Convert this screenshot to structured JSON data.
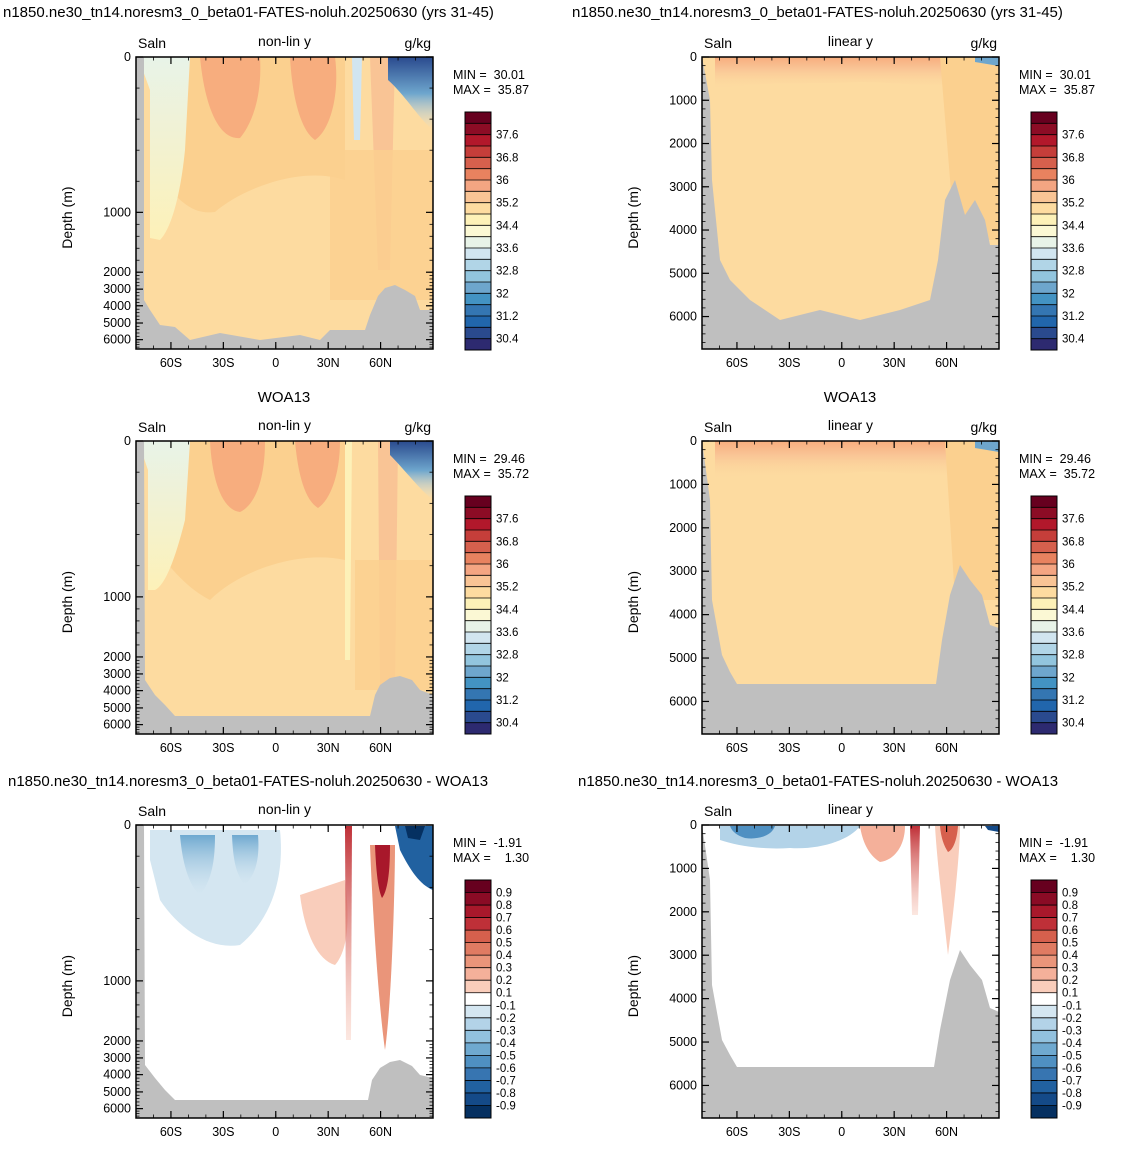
{
  "rows": [
    {
      "title_left": "n1850.ne30_tn14.noresm3_0_beta01-FATES-noluh.20250630 (yrs 31-45)",
      "title_right": "n1850.ne30_tn14.noresm3_0_beta01-FATES-noluh.20250630 (yrs 31-45)"
    },
    {
      "title_left": "WOA13",
      "title_right": "WOA13"
    },
    {
      "title_left": "n1850.ne30_tn14.noresm3_0_beta01-FATES-noluh.20250630 - WOA13",
      "title_right": "n1850.ne30_tn14.noresm3_0_beta01-FATES-noluh.20250630 - WOA13"
    }
  ],
  "colorbars": {
    "salinity": {
      "labels": [
        "37.6",
        "36.8",
        "36",
        "35.2",
        "34.4",
        "33.6",
        "32.8",
        "32",
        "31.2",
        "30.4"
      ],
      "colors": [
        "#67001f",
        "#8c0c25",
        "#b2182b",
        "#c53e3a",
        "#d6604d",
        "#e8825f",
        "#f4a582",
        "#f9c495",
        "#fddba0",
        "#fdf1b8",
        "#fbf8d4",
        "#e8f3e8",
        "#d1e5f0",
        "#b1d5e7",
        "#92c5de",
        "#6ea6cd",
        "#4393c3",
        "#3476b2",
        "#2166ac",
        "#2a4a8e",
        "#2d2a70"
      ]
    },
    "difference": {
      "labels": [
        "0.9",
        "0.8",
        "0.7",
        "0.6",
        "0.5",
        "0.4",
        "0.3",
        "0.2",
        "0.1",
        "-0.1",
        "-0.2",
        "-0.3",
        "-0.4",
        "-0.5",
        "-0.6",
        "-0.7",
        "-0.8",
        "-0.9"
      ],
      "colors": [
        "#67001f",
        "#8a0b25",
        "#a8182b",
        "#bf3038",
        "#d6604d",
        "#e07b62",
        "#ea957a",
        "#f4b09a",
        "#f9cdbb",
        "#ffffff",
        "#d4e6f1",
        "#b3d3e8",
        "#92c1de",
        "#6fa9d0",
        "#4f90c2",
        "#3775b1",
        "#2161a0",
        "#144a88",
        "#053061"
      ]
    }
  },
  "panels": [
    {
      "id": "p1",
      "var": "Saln",
      "mode": "non-lin y",
      "units": "g/kg",
      "min_text": "MIN =  30.01",
      "max_text": "MAX =  35.87"
    },
    {
      "id": "p2",
      "var": "Saln",
      "mode": "linear y",
      "units": "g/kg",
      "min_text": "MIN =  30.01",
      "max_text": "MAX =  35.87"
    },
    {
      "id": "p3",
      "var": "Saln",
      "mode": "non-lin y",
      "units": "g/kg",
      "min_text": "MIN =  29.46",
      "max_text": "MAX =  35.72"
    },
    {
      "id": "p4",
      "var": "Saln",
      "mode": "linear y",
      "units": "g/kg",
      "min_text": "MIN =  29.46",
      "max_text": "MAX =  35.72"
    },
    {
      "id": "p5",
      "var": "Saln",
      "mode": "non-lin y",
      "units": "",
      "min_text": "MIN =  -1.91",
      "max_text": "MAX =    1.30"
    },
    {
      "id": "p6",
      "var": "Saln",
      "mode": "linear y",
      "units": "",
      "min_text": "MIN =  -1.91",
      "max_text": "MAX =    1.30"
    }
  ],
  "chart_data": {
    "type": "heatmap",
    "x_label_ticks": [
      "60S",
      "30S",
      "0",
      "30N",
      "60N"
    ],
    "x_tick_values": [
      -60,
      -30,
      0,
      30,
      60
    ],
    "xlim": [
      -80,
      90
    ],
    "ylabel": "Depth (m)",
    "nonlin_y_ticks": [
      "0",
      "1000",
      "2000",
      "3000",
      "4000",
      "5000",
      "6000"
    ],
    "linear_y_ticks": [
      "0",
      "1000",
      "2000",
      "3000",
      "4000",
      "5000",
      "6000"
    ],
    "ylim": [
      0,
      6750
    ],
    "salinity_range": [
      30.01,
      35.87
    ],
    "woa13_range": [
      29.46,
      35.72
    ],
    "difference_range": [
      -1.91,
      1.3
    ],
    "land_color": "#bfbfbf"
  }
}
